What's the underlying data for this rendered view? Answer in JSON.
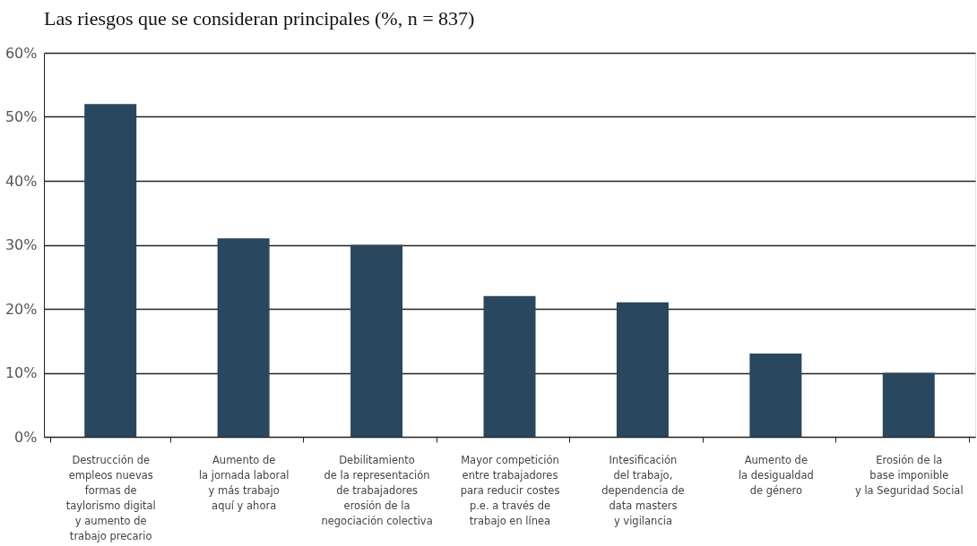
{
  "chart_data": {
    "type": "bar",
    "title": "Las riesgos que se consideran principales (%, n = 837)",
    "categories": [
      "Destrucción de\nempleos nuevas\nformas de\ntaylorismo digital\ny aumento de\ntrabajo precario",
      "Aumento de\nla jornada laboral\ny más trabajo\naquí y ahora",
      "Debilitamiento\nde la representación\nde trabajadores\nerosión de la\nnegociación colectiva",
      "Mayor competición\nentre trabajadores\npara reducir costes\np.e. a través de\ntrabajo en línea",
      "Intesificación\ndel trabajo,\ndependencia de\ndata masters\ny vigilancia",
      "Aumento de\nla desigualdad\nde género",
      "Erosión de la\nbase imponible\ny la Seguridad Social"
    ],
    "values": [
      52,
      31,
      30,
      22,
      21,
      13,
      10
    ],
    "color": "#29475e",
    "ylim": [
      0,
      60
    ],
    "yticks": [
      {
        "value": 0,
        "label": "0%"
      },
      {
        "value": 10,
        "label": "10%"
      },
      {
        "value": 20,
        "label": "20%"
      },
      {
        "value": 30,
        "label": "30%"
      },
      {
        "value": 40,
        "label": "40%"
      },
      {
        "value": 50,
        "label": "50%"
      },
      {
        "value": 60,
        "label": "60%"
      }
    ],
    "grid": "y"
  }
}
